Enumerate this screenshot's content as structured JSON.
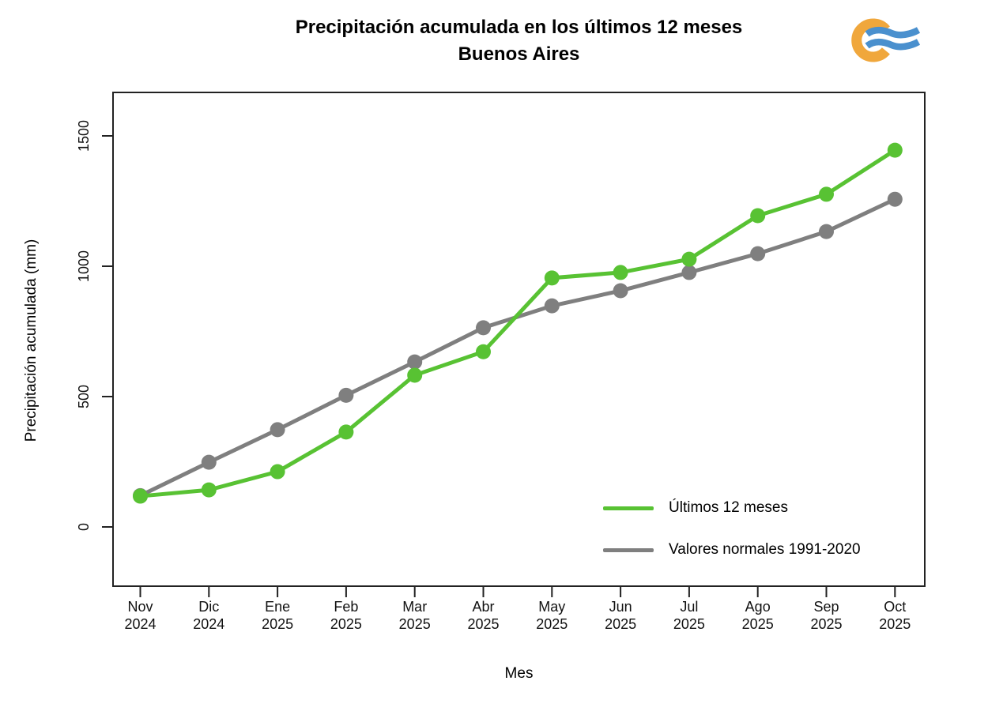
{
  "chart": {
    "title": "Precipitación acumulada en los últimos 12 meses",
    "subtitle": "Buenos Aires",
    "ylabel": "Precipitación acumulada (mm)",
    "xlabel": "Mes"
  },
  "logo": {
    "name": "smn-logo",
    "ring_color": "#F0A73C",
    "wave_color": "#4A90CE"
  },
  "frame_color": "#222222",
  "chart_data": {
    "type": "line",
    "title": "Precipitación acumulada en los últimos 12 meses — Buenos Aires",
    "xlabel": "Mes",
    "ylabel": "Precipitación acumulada (mm)",
    "categories": [
      [
        "Nov",
        "2024"
      ],
      [
        "Dic",
        "2024"
      ],
      [
        "Ene",
        "2025"
      ],
      [
        "Feb",
        "2025"
      ],
      [
        "Mar",
        "2025"
      ],
      [
        "Abr",
        "2025"
      ],
      [
        "May",
        "2025"
      ],
      [
        "Jun",
        "2025"
      ],
      [
        "Jul",
        "2025"
      ],
      [
        "Ago",
        "2025"
      ],
      [
        "Sep",
        "2025"
      ],
      [
        "Oct",
        "2025"
      ]
    ],
    "yticks": [
      0,
      500,
      1000,
      1500
    ],
    "ylim": [
      -225,
      1665
    ],
    "grid": false,
    "legend_position": "inside-bottom-right",
    "series": [
      {
        "name": "Últimos 12 meses",
        "color": "#58C233",
        "values": [
          118,
          142,
          212,
          364,
          582,
          672,
          955,
          976,
          1027,
          1194,
          1276,
          1445
        ]
      },
      {
        "name": "Valores normales 1991-2020",
        "color": "#7F7F7F",
        "values": [
          120,
          248,
          373,
          505,
          633,
          764,
          848,
          906,
          976,
          1048,
          1133,
          1257
        ]
      }
    ]
  }
}
